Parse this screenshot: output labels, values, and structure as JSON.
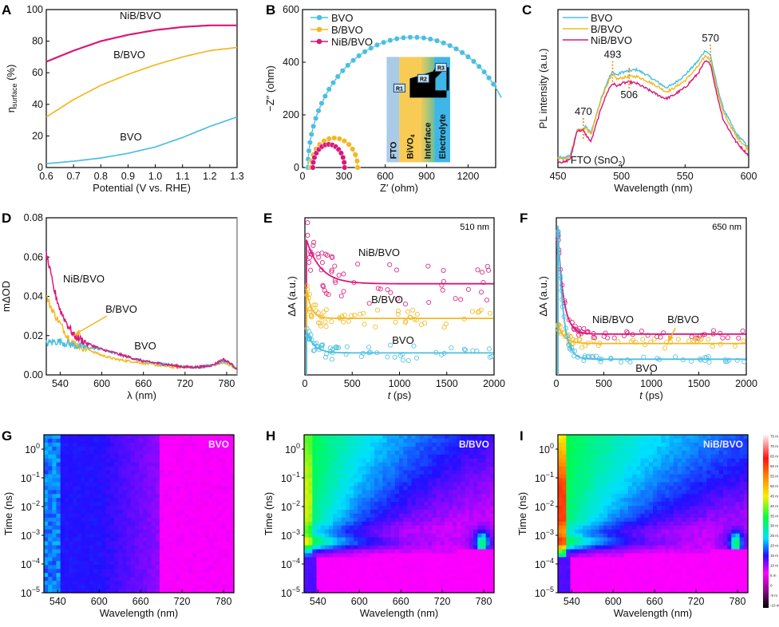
{
  "colors": {
    "BVO": "#4bbfe0",
    "B/BVO": "#f2b820",
    "NiB/BVO": "#d8187a",
    "annot": "#e88a1a"
  },
  "chart_data": [
    {
      "panel": "A",
      "type": "line",
      "xlabel": "Potential (V vs. RHE)",
      "ylabel": "η_surface (%)",
      "ylabel_main": "η",
      "ylabel_sub": "surface",
      "ylabel_unit": " (%)",
      "xlim": [
        0.6,
        1.3
      ],
      "ylim": [
        0,
        100
      ],
      "xticks": [
        "0.6",
        "0.7",
        "0.8",
        "0.9",
        "1.0",
        "1.1",
        "1.2",
        "1.3"
      ],
      "yticks": [
        "0",
        "20",
        "40",
        "60",
        "80",
        "100"
      ],
      "x": [
        0.6,
        0.7,
        0.8,
        0.9,
        1.0,
        1.1,
        1.2,
        1.3
      ],
      "series": [
        {
          "name": "NiB/BVO",
          "values": [
            67,
            74,
            80,
            84,
            87,
            89,
            90,
            90
          ]
        },
        {
          "name": "B/BVO",
          "values": [
            32,
            43,
            52,
            59,
            65,
            70,
            74,
            76
          ]
        },
        {
          "name": "BVO",
          "values": [
            2.5,
            4,
            6,
            9,
            13,
            19,
            26,
            32
          ]
        }
      ],
      "annotations": [
        {
          "text": "NiB/BVO",
          "series": "NiB/BVO"
        },
        {
          "text": "B/BVO",
          "series": "B/BVO"
        },
        {
          "text": "BVO",
          "series": "BVO"
        }
      ]
    },
    {
      "panel": "B",
      "type": "scatter",
      "xlabel": "Z′ (ohm)",
      "ylabel": "−Z″ (ohm)",
      "xlim": [
        0,
        1400
      ],
      "ylim": [
        0,
        600
      ],
      "xticks": [
        "0",
        "300",
        "600",
        "900",
        "1200"
      ],
      "yticks": [
        "0",
        "200",
        "400",
        "600"
      ],
      "series": [
        {
          "name": "BVO",
          "center": 800,
          "radius": 760,
          "ymax": 495
        },
        {
          "name": "B/BVO",
          "center": 230,
          "radius": 170,
          "ymax": 112
        },
        {
          "name": "NiB/BVO",
          "center": 190,
          "radius": 115,
          "ymax": 88
        }
      ],
      "legend": [
        "BVO",
        "B/BVO",
        "NiB/BVO"
      ],
      "legend_position": "top-left",
      "inset": {
        "layers": [
          "FTO",
          "BiVO₄",
          "Interface",
          "Electrolyte"
        ],
        "layer_main": [
          "FTO",
          "BiVO",
          "Interface",
          "Electrolyte"
        ],
        "layer_sub": [
          "",
          "4",
          "",
          ""
        ],
        "resistors": [
          "R1",
          "R2",
          "R3"
        ]
      }
    },
    {
      "panel": "C",
      "type": "line",
      "xlabel": "Wavelength (nm)",
      "ylabel": "PL intensity (a.u.)",
      "xlim": [
        450,
        600
      ],
      "xticks": [
        "450",
        "500",
        "550",
        "600"
      ],
      "x": [
        450,
        455,
        460,
        465,
        470,
        472,
        476,
        480,
        485,
        490,
        493,
        497,
        500,
        506,
        512,
        520,
        530,
        535,
        540,
        550,
        560,
        566,
        570,
        575,
        580,
        590,
        600
      ],
      "series": [
        {
          "name": "BVO",
          "values": [
            0.03,
            0.02,
            0.05,
            0.22,
            0.23,
            0.25,
            0.2,
            0.33,
            0.48,
            0.6,
            0.64,
            0.62,
            0.64,
            0.65,
            0.66,
            0.62,
            0.56,
            0.53,
            0.55,
            0.62,
            0.72,
            0.8,
            0.76,
            0.55,
            0.38,
            0.2,
            0.1
          ]
        },
        {
          "name": "B/BVO",
          "values": [
            0.02,
            0.01,
            0.04,
            0.22,
            0.23,
            0.24,
            0.19,
            0.32,
            0.47,
            0.58,
            0.62,
            0.59,
            0.6,
            0.61,
            0.61,
            0.58,
            0.53,
            0.5,
            0.52,
            0.58,
            0.68,
            0.76,
            0.73,
            0.52,
            0.35,
            0.18,
            0.08
          ]
        },
        {
          "name": "NiB/BVO",
          "values": [
            0.0,
            -0.01,
            0.02,
            0.22,
            0.22,
            0.19,
            0.14,
            0.26,
            0.41,
            0.52,
            0.56,
            0.54,
            0.56,
            0.57,
            0.56,
            0.52,
            0.47,
            0.45,
            0.47,
            0.53,
            0.63,
            0.72,
            0.7,
            0.48,
            0.3,
            0.14,
            0.04
          ]
        }
      ],
      "legend": [
        "BVO",
        "B/BVO",
        "NiB/BVO"
      ],
      "legend_position": "top-left",
      "peaks": [
        {
          "label": "470",
          "x": 470
        },
        {
          "label": "493",
          "x": 493
        },
        {
          "label": "506",
          "x": 506
        },
        {
          "label": "570",
          "x": 570
        }
      ],
      "annotation": "FTO (SnO₂)",
      "annotation_main": "FTO (SnO",
      "annotation_sub": "2",
      "annotation_end": ")"
    },
    {
      "panel": "D",
      "type": "line",
      "xlabel": "λ (nm)",
      "ylabel": "mΔOD",
      "xlim": [
        520,
        795
      ],
      "ylim": [
        0,
        0.08
      ],
      "xticks": [
        "540",
        "600",
        "660",
        "720",
        "780"
      ],
      "yticks": [
        "0.00",
        "0.02",
        "0.04",
        "0.06",
        "0.08"
      ],
      "x": [
        520,
        530,
        540,
        550,
        560,
        580,
        600,
        620,
        640,
        660,
        680,
        700,
        720,
        740,
        760,
        775,
        785,
        795
      ],
      "series": [
        {
          "name": "NiB/BVO",
          "values": [
            0.062,
            0.045,
            0.033,
            0.026,
            0.02,
            0.016,
            0.013,
            0.011,
            0.009,
            0.007,
            0.006,
            0.005,
            0.004,
            0.004,
            0.005,
            0.008,
            0.006,
            0.003
          ]
        },
        {
          "name": "B/BVO",
          "values": [
            0.04,
            0.032,
            0.026,
            0.02,
            0.016,
            0.013,
            0.01,
            0.008,
            0.007,
            0.006,
            0.005,
            0.004,
            0.004,
            0.004,
            0.005,
            0.006,
            0.005,
            0.003
          ]
        },
        {
          "name": "BVO",
          "values": [
            0.016,
            0.017,
            0.017,
            0.016,
            0.015,
            0.014,
            0.013,
            0.011,
            0.009,
            0.007,
            0.006,
            0.005,
            0.004,
            0.004,
            0.005,
            0.007,
            0.006,
            0.003
          ]
        }
      ],
      "annotations": [
        {
          "text": "NiB/BVO"
        },
        {
          "text": "B/BVO"
        },
        {
          "text": "BVO"
        }
      ]
    },
    {
      "panel": "E",
      "type": "scatter",
      "xlabel": "t (ps)",
      "xlabel_var": "t",
      "xlabel_unit": " (ps)",
      "ylabel": "ΔA (a.u.)",
      "xlim": [
        0,
        2000
      ],
      "xticks": [
        "0",
        "500",
        "1000",
        "1500",
        "2000"
      ],
      "probe": "510 nm",
      "series": [
        {
          "name": "NiB/BVO",
          "plateau": 0.58,
          "peak": 0.86,
          "tau": 150,
          "noise": 0.13
        },
        {
          "name": "B/BVO",
          "plateau": 0.36,
          "peak": 0.55,
          "tau": 50,
          "noise": 0.06
        },
        {
          "name": "BVO",
          "plateau": 0.14,
          "peak": 0.28,
          "tau": 80,
          "noise": 0.05
        }
      ]
    },
    {
      "panel": "F",
      "type": "scatter",
      "xlabel": "t (ps)",
      "xlabel_var": "t",
      "xlabel_unit": " (ps)",
      "ylabel": "ΔA (a.u.)",
      "xlim": [
        0,
        2000
      ],
      "xticks": [
        "0",
        "500",
        "1000",
        "1500",
        "2000"
      ],
      "probe": "650 nm",
      "series": [
        {
          "name": "NiB/BVO",
          "plateau": 0.26,
          "peak": 0.9,
          "tau": 60,
          "noise": 0.03
        },
        {
          "name": "B/BVO",
          "plateau": 0.2,
          "peak": 0.32,
          "tau": 70,
          "noise": 0.03
        },
        {
          "name": "BVO",
          "plateau": 0.1,
          "peak": 0.95,
          "tau": 55,
          "noise": 0.02
        }
      ]
    },
    {
      "panel": "G",
      "type": "heatmap",
      "title": "BVO",
      "xlabel": "Wavelength (nm)",
      "ylabel": "Time (ns)",
      "xlim": [
        520,
        795
      ],
      "ylim_log10": [
        -5,
        0.5
      ],
      "xticks": [
        "540",
        "600",
        "660",
        "720",
        "780"
      ],
      "yticks_exp": [
        "0",
        "−1",
        "−2",
        "−3",
        "−4",
        "−5"
      ]
    },
    {
      "panel": "H",
      "type": "heatmap",
      "title": "B/BVO",
      "xlabel": "Wavelength (nm)",
      "ylabel": "Time (ns)",
      "xlim": [
        520,
        795
      ],
      "ylim_log10": [
        -5,
        0.5
      ],
      "xticks": [
        "540",
        "600",
        "660",
        "720",
        "780"
      ],
      "yticks_exp": [
        "0",
        "−1",
        "−2",
        "−3",
        "−4",
        "−5"
      ]
    },
    {
      "panel": "I",
      "type": "heatmap",
      "title": "NiB/BVO",
      "xlabel": "Wavelength (nm)",
      "ylabel": "Time (ns)",
      "xlim": [
        520,
        795
      ],
      "ylim_log10": [
        -5,
        0.5
      ],
      "xticks": [
        "540",
        "600",
        "660",
        "720",
        "780"
      ],
      "yticks_exp": [
        "0",
        "−1",
        "−2",
        "−3",
        "−4",
        "−5"
      ],
      "colorbar": {
        "ticks": [
          "75 m",
          "70 m",
          "65 m",
          "60 m",
          "55 m",
          "50 m",
          "45 m",
          "40 m",
          "35 m",
          "30 m",
          "25 m",
          "20 m",
          "15 m",
          "10 m",
          "5 m",
          "0",
          "-5 m",
          "-10 m"
        ],
        "range": [
          -10,
          75
        ]
      }
    }
  ]
}
